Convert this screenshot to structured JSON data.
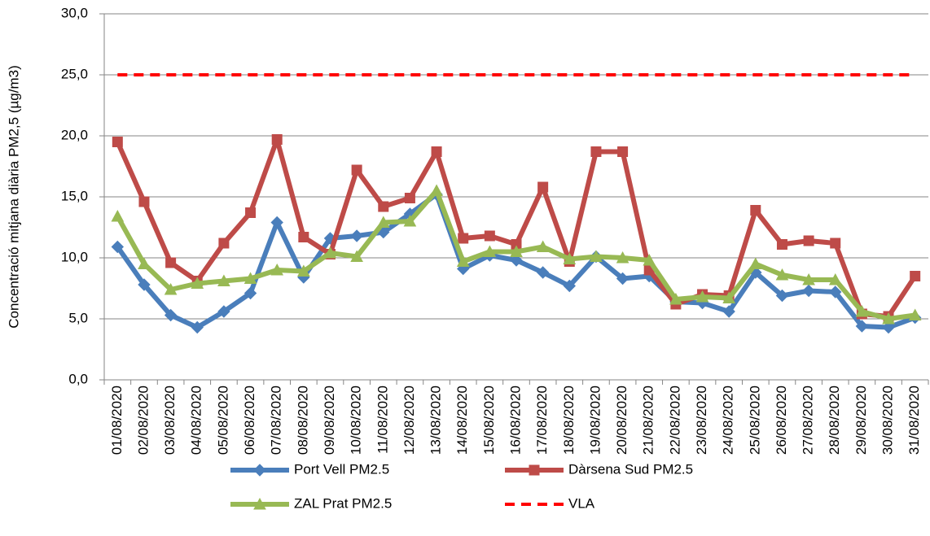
{
  "chart_data": {
    "type": "line",
    "y_label": "Concentració mitjana diària PM2,5 (µg/m3)",
    "categories": [
      "01/08/2020",
      "02/08/2020",
      "03/08/2020",
      "04/08/2020",
      "05/08/2020",
      "06/08/2020",
      "07/08/2020",
      "08/08/2020",
      "09/08/2020",
      "10/08/2020",
      "11/08/2020",
      "12/08/2020",
      "13/08/2020",
      "14/08/2020",
      "15/08/2020",
      "16/08/2020",
      "17/08/2020",
      "18/08/2020",
      "19/08/2020",
      "20/08/2020",
      "21/08/2020",
      "22/08/2020",
      "23/08/2020",
      "24/08/2020",
      "25/08/2020",
      "26/08/2020",
      "27/08/2020",
      "28/08/2020",
      "29/08/2020",
      "30/08/2020",
      "31/08/2020"
    ],
    "series": [
      {
        "name": "Port Vell PM2.5",
        "color": "#4a7ebb",
        "marker": "diamond",
        "values": [
          10.9,
          7.8,
          5.3,
          4.3,
          5.6,
          7.1,
          12.9,
          8.4,
          11.6,
          11.8,
          12.1,
          13.6,
          15.2,
          9.1,
          10.2,
          9.8,
          8.8,
          7.7,
          10.1,
          8.3,
          8.5,
          6.4,
          6.3,
          5.6,
          8.8,
          6.9,
          7.3,
          7.2,
          4.4,
          4.3,
          5.1
        ]
      },
      {
        "name": "Dàrsena Sud PM2.5",
        "color": "#be4b48",
        "marker": "square",
        "values": [
          19.5,
          14.6,
          9.6,
          8.1,
          11.2,
          13.7,
          19.7,
          11.7,
          10.3,
          17.2,
          14.2,
          14.9,
          18.7,
          11.6,
          11.8,
          11.1,
          15.8,
          9.7,
          18.7,
          18.7,
          9.0,
          6.2,
          7.0,
          6.9,
          13.9,
          11.1,
          11.4,
          11.2,
          5.4,
          5.2,
          8.5
        ]
      },
      {
        "name": "ZAL Prat PM2.5",
        "color": "#98b954",
        "marker": "triangle",
        "values": [
          13.4,
          9.5,
          7.4,
          7.9,
          8.1,
          8.3,
          9.0,
          8.9,
          10.4,
          10.1,
          12.9,
          13.0,
          15.5,
          9.7,
          10.5,
          10.5,
          10.9,
          9.9,
          10.1,
          10.0,
          9.8,
          6.6,
          6.8,
          6.7,
          9.5,
          8.6,
          8.2,
          8.2,
          5.6,
          5.0,
          5.3
        ]
      },
      {
        "name": "VLA",
        "color": "#ff0000",
        "dashed": true,
        "values": [
          25,
          25,
          25,
          25,
          25,
          25,
          25,
          25,
          25,
          25,
          25,
          25,
          25,
          25,
          25,
          25,
          25,
          25,
          25,
          25,
          25,
          25,
          25,
          25,
          25,
          25,
          25,
          25,
          25,
          25,
          25
        ]
      }
    ],
    "ylim": [
      0,
      30
    ],
    "yticks": [
      {
        "value": 0,
        "label": "0,0"
      },
      {
        "value": 5,
        "label": "5,0"
      },
      {
        "value": 10,
        "label": "10,0"
      },
      {
        "value": 15,
        "label": "15,0"
      },
      {
        "value": 20,
        "label": "20,0"
      },
      {
        "value": 25,
        "label": "25,0"
      },
      {
        "value": 30,
        "label": "30,0"
      }
    ],
    "grid": true,
    "legend": "bottom"
  }
}
